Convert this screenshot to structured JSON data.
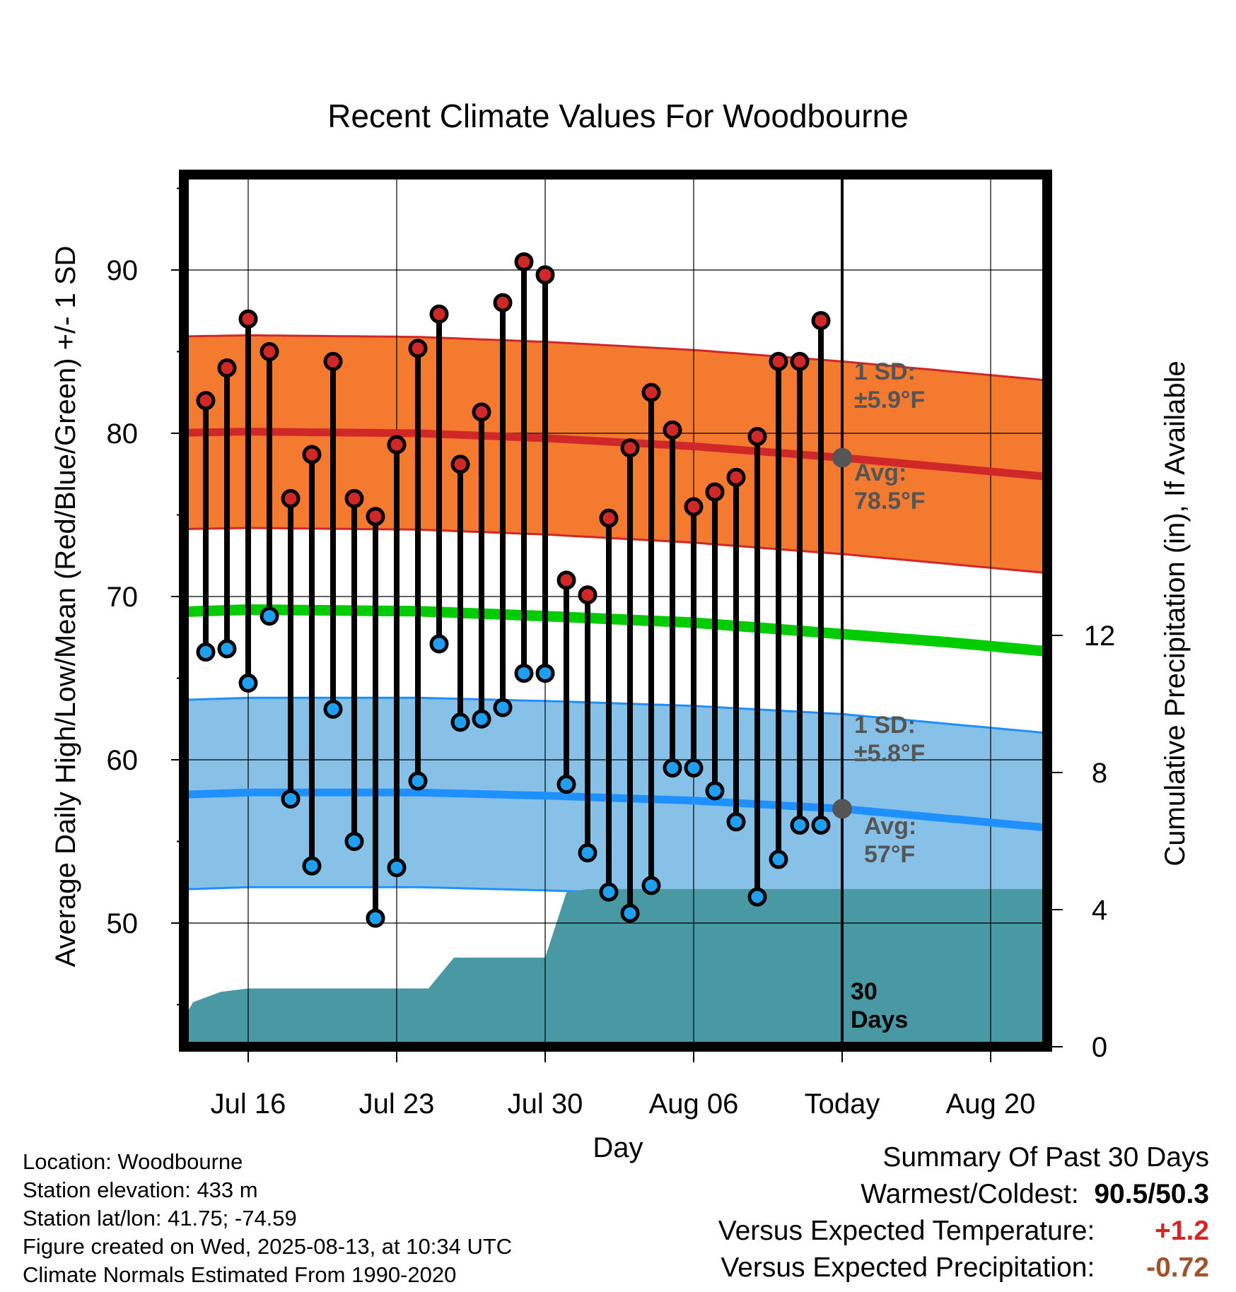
{
  "chart_data": {
    "type": "line",
    "title": "Recent Climate Values For Woodbourne",
    "xlabel": "Day",
    "ylabel": "Average Daily High/Low/Mean (Red/Blue/Green) +/- 1 SD",
    "y2label": "Cumulative Precipitation (in), If Available",
    "ylim": [
      42,
      96
    ],
    "y2lim": [
      0,
      23
    ],
    "xlim_days": [
      -32.5,
      10.5
    ],
    "x_ticks": [
      {
        "day": -28,
        "label": "Jul 16"
      },
      {
        "day": -21,
        "label": "Jul 23"
      },
      {
        "day": -14,
        "label": "Jul 30"
      },
      {
        "day": -7,
        "label": "Aug 06"
      },
      {
        "day": 0,
        "label": "Today"
      },
      {
        "day": 7,
        "label": "Aug 20"
      }
    ],
    "y_ticks": [
      50,
      60,
      70,
      80,
      90
    ],
    "y2_ticks": [
      0,
      4,
      8,
      12
    ],
    "grid": true,
    "normals": {
      "high_avg": [
        [
          -32.5,
          80.0
        ],
        [
          -28,
          80.1
        ],
        [
          -20,
          80.0
        ],
        [
          -14,
          79.7
        ],
        [
          -7,
          79.2
        ],
        [
          0,
          78.5
        ],
        [
          5,
          77.9
        ],
        [
          10,
          77.3
        ]
      ],
      "high_sd": 5.9,
      "low_avg": [
        [
          -32.5,
          57.8
        ],
        [
          -28,
          58.0
        ],
        [
          -20,
          58.0
        ],
        [
          -14,
          57.8
        ],
        [
          -7,
          57.5
        ],
        [
          0,
          57.0
        ],
        [
          5,
          56.4
        ],
        [
          10,
          55.8
        ]
      ],
      "low_sd": 5.8,
      "mean_avg": [
        [
          -32.5,
          69.0
        ],
        [
          -28,
          69.2
        ],
        [
          -20,
          69.1
        ],
        [
          -14,
          68.8
        ],
        [
          -7,
          68.4
        ],
        [
          0,
          67.7
        ],
        [
          5,
          67.2
        ],
        [
          10,
          66.6
        ]
      ]
    },
    "daily": {
      "days": [
        -30,
        -29,
        -28,
        -27,
        -26,
        -25,
        -24,
        -23,
        -22,
        -21,
        -20,
        -19,
        -18,
        -17,
        -16,
        -15,
        -14,
        -13,
        -12,
        -11,
        -10,
        -9,
        -8,
        -7,
        -6,
        -5,
        -4,
        -3,
        -2,
        -1
      ],
      "high": [
        82.0,
        84.0,
        87.0,
        85.0,
        76.0,
        78.7,
        84.4,
        76.0,
        74.9,
        79.3,
        85.2,
        87.3,
        78.1,
        81.3,
        88.0,
        90.5,
        89.7,
        71.0,
        70.1,
        74.8,
        79.1,
        82.5,
        80.2,
        75.5,
        76.4,
        77.3,
        79.8,
        84.4,
        84.4,
        86.9
      ],
      "low": [
        66.6,
        66.8,
        64.7,
        68.8,
        57.6,
        53.5,
        63.1,
        55.0,
        50.3,
        53.4,
        58.7,
        67.1,
        62.3,
        62.5,
        63.2,
        65.3,
        65.3,
        58.5,
        54.3,
        51.9,
        50.6,
        52.3,
        59.5,
        59.5,
        58.1,
        56.2,
        51.6,
        53.9,
        56.0,
        56.0
      ]
    },
    "precipitation": {
      "cumulative": [
        [
          -32.5,
          0.0
        ],
        [
          -31.8,
          0.0
        ],
        [
          -30.6,
          1.3
        ],
        [
          -29.3,
          1.6
        ],
        [
          -28,
          1.7
        ],
        [
          -21,
          1.7
        ],
        [
          -19.5,
          1.7
        ],
        [
          -18.3,
          2.6
        ],
        [
          -14,
          2.6
        ],
        [
          -13,
          4.5
        ],
        [
          -12,
          4.6
        ],
        [
          10.5,
          4.6
        ]
      ],
      "period_label_line1": "30",
      "period_label_line2": "Days"
    },
    "annotations": {
      "high_sd": {
        "line1": "1 SD:",
        "line2": "±5.9°F"
      },
      "high_avg": {
        "line1": "Avg:",
        "line2": "78.5°F",
        "value": 78.5
      },
      "low_sd": {
        "line1": "1 SD:",
        "line2": "±5.8°F"
      },
      "low_avg": {
        "line1": "Avg:",
        "line2": "57°F",
        "value": 57.0
      }
    },
    "colors": {
      "high_line": "#d02828",
      "high_band": "#f47a30",
      "low_line": "#1e90ff",
      "low_band": "#87c1e8",
      "mean_line": "#00cc00",
      "precip": "#4899a3",
      "high_dot": "#d02828",
      "low_dot": "#1e9ff0"
    }
  },
  "footer": {
    "location": "Location: Woodbourne",
    "elevation": "Station elevation: 433 m",
    "latlon": "Station lat/lon: 41.75; -74.59",
    "created": "Figure created on Wed, 2025-08-13, at 10:34 UTC",
    "normals": "Climate Normals Estimated From 1990-2020"
  },
  "summary": {
    "heading": "Summary Of Past 30 Days",
    "warmest_coldest_label": "Warmest/Coldest:",
    "warmest_coldest_value": "90.5/50.3",
    "temp_label": "Versus Expected Temperature:",
    "temp_value": "+1.2",
    "precip_label": "Versus Expected Precipitation:",
    "precip_value": "-0.72"
  }
}
